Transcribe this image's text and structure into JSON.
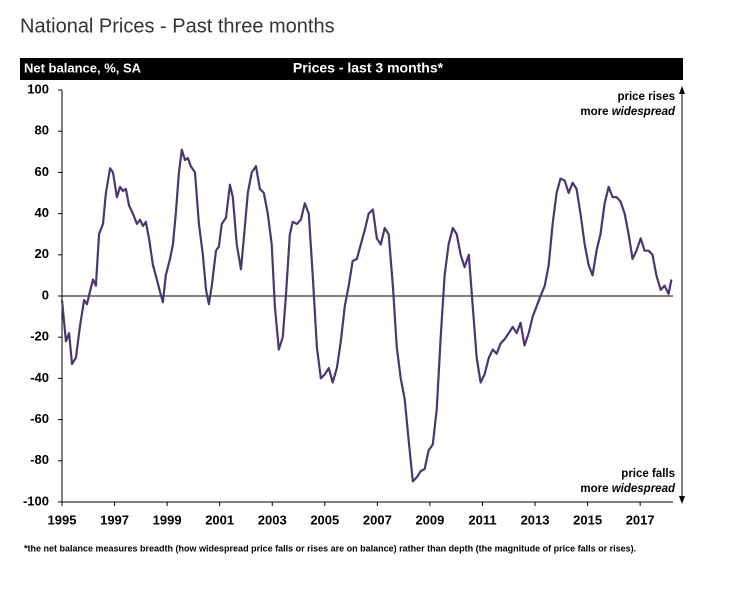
{
  "chart_data": {
    "type": "line",
    "title": "National Prices - Past three months",
    "header_left": "Net balance, %, SA",
    "header_center": "Prices - last 3 months*",
    "annotation_top": {
      "line1": "price rises",
      "line2": "more ",
      "italic": "widespread"
    },
    "annotation_bottom": {
      "line1": "price falls",
      "line2": "more ",
      "italic": "widespread"
    },
    "footnote": "*the net balance measures breadth (how widespread price falls or rises are on balance)  rather than depth (the magnitude of price falls or rises).",
    "color": "#4b3672",
    "xlim": [
      1995,
      2018.25
    ],
    "xticks": [
      1995,
      1997,
      1999,
      2001,
      2003,
      2005,
      2007,
      2009,
      2011,
      2013,
      2015,
      2017
    ],
    "ylim": [
      -100,
      100
    ],
    "yticks": [
      -100,
      -80,
      -60,
      -40,
      -20,
      0,
      20,
      40,
      60,
      80,
      100
    ],
    "x": [
      1995,
      1995.15,
      1995.27,
      1995.38,
      1995.53,
      1995.68,
      1995.84,
      1995.95,
      1996.06,
      1996.18,
      1996.29,
      1996.41,
      1996.56,
      1996.67,
      1996.83,
      1996.94,
      1997.09,
      1997.21,
      1997.32,
      1997.43,
      1997.55,
      1997.7,
      1997.85,
      1997.97,
      1998.08,
      1998.19,
      1998.31,
      1998.46,
      1998.61,
      1998.73,
      1998.84,
      1998.95,
      1999.11,
      1999.22,
      1999.33,
      1999.45,
      1999.56,
      1999.68,
      1999.79,
      1999.9,
      2000.06,
      2000.21,
      2000.36,
      2000.48,
      2000.59,
      2000.7,
      2000.86,
      2000.97,
      2001.08,
      2001.24,
      2001.39,
      2001.5,
      2001.65,
      2001.81,
      2001.92,
      2002.07,
      2002.22,
      2002.38,
      2002.53,
      2002.68,
      2002.83,
      2002.98,
      2003.1,
      2003.25,
      2003.4,
      2003.52,
      2003.67,
      2003.78,
      2003.94,
      2004.09,
      2004.24,
      2004.39,
      2004.54,
      2004.7,
      2004.85,
      2005,
      2005.15,
      2005.3,
      2005.46,
      2005.61,
      2005.76,
      2005.91,
      2006.06,
      2006.22,
      2006.37,
      2006.52,
      2006.67,
      2006.83,
      2006.98,
      2007.13,
      2007.28,
      2007.43,
      2007.59,
      2007.74,
      2007.89,
      2008.04,
      2008.19,
      2008.35,
      2008.5,
      2008.65,
      2008.8,
      2008.95,
      2009.11,
      2009.26,
      2009.41,
      2009.56,
      2009.71,
      2009.87,
      2010.02,
      2010.17,
      2010.32,
      2010.48,
      2010.63,
      2010.78,
      2010.93,
      2011.08,
      2011.24,
      2011.39,
      2011.54,
      2011.69,
      2011.84,
      2012,
      2012.15,
      2012.3,
      2012.45,
      2012.6,
      2012.76,
      2012.91,
      2013.06,
      2013.21,
      2013.37,
      2013.52,
      2013.67,
      2013.82,
      2013.97,
      2014.13,
      2014.28,
      2014.43,
      2014.58,
      2014.73,
      2014.89,
      2015.04,
      2015.19,
      2015.34,
      2015.49,
      2015.65,
      2015.8,
      2015.95,
      2016.1,
      2016.25,
      2016.41,
      2016.56,
      2016.71,
      2016.86,
      2017.02,
      2017.17,
      2017.32,
      2017.47,
      2017.62,
      2017.78,
      2017.93,
      2018.08,
      2018.19
    ],
    "values": [
      -2,
      -22,
      -18,
      -33,
      -30,
      -15,
      -2,
      -4,
      2,
      8,
      5,
      30,
      35,
      50,
      62,
      60,
      48,
      53,
      51,
      52,
      44,
      40,
      35,
      37,
      34,
      36,
      28,
      15,
      8,
      2,
      -3,
      10,
      18,
      25,
      40,
      60,
      71,
      66,
      67,
      63,
      60,
      35,
      20,
      3,
      -4,
      5,
      22,
      24,
      35,
      38,
      54,
      48,
      25,
      13,
      28,
      50,
      60,
      63,
      52,
      50,
      40,
      25,
      -5,
      -26,
      -20,
      0,
      30,
      36,
      35,
      37,
      45,
      40,
      10,
      -25,
      -40,
      -38,
      -35,
      -42,
      -35,
      -22,
      -5,
      5,
      17,
      18,
      25,
      32,
      40,
      42,
      28,
      25,
      33,
      30,
      5,
      -25,
      -40,
      -50,
      -70,
      -90,
      -88,
      -85,
      -84,
      -75,
      -72,
      -55,
      -20,
      10,
      25,
      33,
      30,
      20,
      14,
      20,
      -5,
      -30,
      -42,
      -38,
      -30,
      -26,
      -28,
      -23,
      -21,
      -18,
      -15,
      -18,
      -13,
      -24,
      -18,
      -10,
      -5,
      0,
      5,
      15,
      35,
      50,
      57,
      56,
      50,
      55,
      52,
      40,
      25,
      15,
      10,
      22,
      30,
      45,
      53,
      48,
      48,
      46,
      40,
      30,
      18,
      22,
      28,
      22,
      22,
      20,
      10,
      3,
      5,
      1,
      8
    ]
  }
}
